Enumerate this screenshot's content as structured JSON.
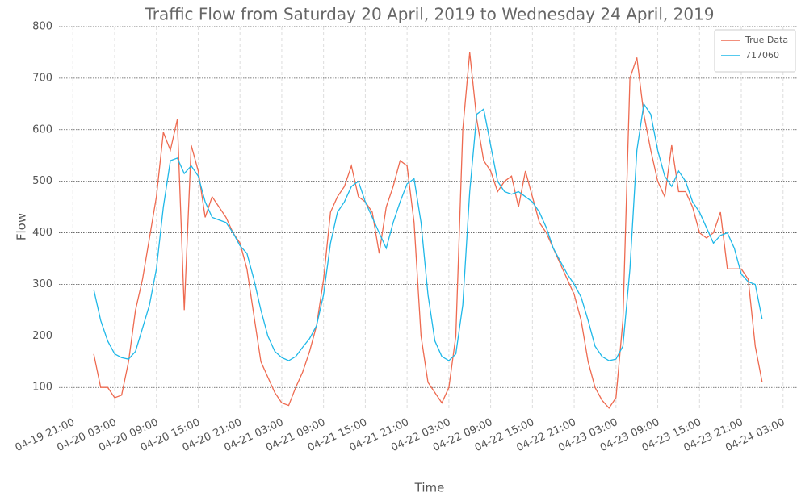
{
  "chart_data": {
    "type": "line",
    "title": "Traffic Flow from Saturday 20 April, 2019 to Wednesday 24 April, 2019",
    "xlabel": "Time",
    "ylabel": "Flow",
    "x": [
      "04-20 00:00",
      "04-20 01:00",
      "04-20 02:00",
      "04-20 03:00",
      "04-20 04:00",
      "04-20 05:00",
      "04-20 06:00",
      "04-20 07:00",
      "04-20 08:00",
      "04-20 09:00",
      "04-20 10:00",
      "04-20 11:00",
      "04-20 12:00",
      "04-20 13:00",
      "04-20 14:00",
      "04-20 15:00",
      "04-20 16:00",
      "04-20 17:00",
      "04-20 18:00",
      "04-20 19:00",
      "04-20 20:00",
      "04-20 21:00",
      "04-20 22:00",
      "04-20 23:00",
      "04-21 00:00",
      "04-21 01:00",
      "04-21 02:00",
      "04-21 03:00",
      "04-21 04:00",
      "04-21 05:00",
      "04-21 06:00",
      "04-21 07:00",
      "04-21 08:00",
      "04-21 09:00",
      "04-21 10:00",
      "04-21 11:00",
      "04-21 12:00",
      "04-21 13:00",
      "04-21 14:00",
      "04-21 15:00",
      "04-21 16:00",
      "04-21 17:00",
      "04-21 18:00",
      "04-21 19:00",
      "04-21 20:00",
      "04-21 21:00",
      "04-21 22:00",
      "04-21 23:00",
      "04-22 00:00",
      "04-22 01:00",
      "04-22 02:00",
      "04-22 03:00",
      "04-22 04:00",
      "04-22 05:00",
      "04-22 06:00",
      "04-22 07:00",
      "04-22 08:00",
      "04-22 09:00",
      "04-22 10:00",
      "04-22 11:00",
      "04-22 12:00",
      "04-22 13:00",
      "04-22 14:00",
      "04-22 15:00",
      "04-22 16:00",
      "04-22 17:00",
      "04-22 18:00",
      "04-22 19:00",
      "04-22 20:00",
      "04-22 21:00",
      "04-22 22:00",
      "04-22 23:00",
      "04-23 00:00",
      "04-23 01:00",
      "04-23 02:00",
      "04-23 03:00",
      "04-23 04:00",
      "04-23 05:00",
      "04-23 06:00",
      "04-23 07:00",
      "04-23 08:00",
      "04-23 09:00",
      "04-23 10:00",
      "04-23 11:00",
      "04-23 12:00",
      "04-23 13:00",
      "04-23 14:00",
      "04-23 15:00",
      "04-23 16:00",
      "04-23 17:00",
      "04-23 18:00",
      "04-23 19:00",
      "04-23 20:00",
      "04-23 21:00",
      "04-23 22:00",
      "04-23 23:00",
      "04-24 00:00"
    ],
    "series": [
      {
        "name": "True Data",
        "color": "#ee6a50",
        "values": [
          165,
          100,
          100,
          80,
          85,
          150,
          250,
          310,
          390,
          470,
          595,
          560,
          620,
          250,
          570,
          520,
          430,
          470,
          450,
          430,
          400,
          380,
          330,
          240,
          150,
          120,
          90,
          70,
          65,
          100,
          130,
          170,
          220,
          310,
          440,
          470,
          490,
          530,
          470,
          460,
          440,
          360,
          450,
          490,
          540,
          530,
          420,
          200,
          110,
          90,
          70,
          100,
          200,
          600,
          750,
          620,
          540,
          520,
          480,
          500,
          510,
          450,
          520,
          470,
          420,
          400,
          370,
          340,
          310,
          280,
          230,
          150,
          100,
          75,
          60,
          80,
          230,
          700,
          740,
          630,
          560,
          500,
          470,
          570,
          480,
          480,
          450,
          400,
          390,
          400,
          440,
          330,
          330,
          330,
          310,
          180,
          110
        ]
      },
      {
        "name": "717060",
        "color": "#1fb8e8",
        "values": [
          290,
          230,
          190,
          165,
          158,
          155,
          170,
          215,
          260,
          330,
          450,
          540,
          545,
          515,
          530,
          510,
          460,
          430,
          425,
          420,
          400,
          375,
          360,
          310,
          250,
          200,
          170,
          158,
          152,
          160,
          178,
          195,
          220,
          280,
          380,
          440,
          460,
          490,
          500,
          460,
          430,
          400,
          370,
          420,
          460,
          495,
          505,
          420,
          280,
          190,
          160,
          152,
          165,
          260,
          480,
          630,
          640,
          570,
          500,
          480,
          475,
          480,
          470,
          460,
          440,
          410,
          370,
          345,
          320,
          300,
          275,
          230,
          180,
          160,
          152,
          155,
          180,
          330,
          560,
          650,
          630,
          560,
          510,
          490,
          520,
          500,
          460,
          440,
          410,
          380,
          395,
          400,
          370,
          320,
          305,
          300,
          232
        ]
      }
    ],
    "xlim": [
      "04-19 19:00",
      "04-24 05:00"
    ],
    "xticks": [
      "04-19 21:00",
      "04-20 03:00",
      "04-20 09:00",
      "04-20 15:00",
      "04-20 21:00",
      "04-21 03:00",
      "04-21 09:00",
      "04-21 15:00",
      "04-21 21:00",
      "04-22 03:00",
      "04-22 09:00",
      "04-22 15:00",
      "04-22 21:00",
      "04-23 03:00",
      "04-23 09:00",
      "04-23 15:00",
      "04-23 21:00",
      "04-24 03:00"
    ],
    "ylim": [
      55,
      800
    ],
    "yticks": [
      100,
      200,
      300,
      400,
      500,
      600,
      700,
      800
    ],
    "grid": true,
    "legend": "upper right"
  }
}
